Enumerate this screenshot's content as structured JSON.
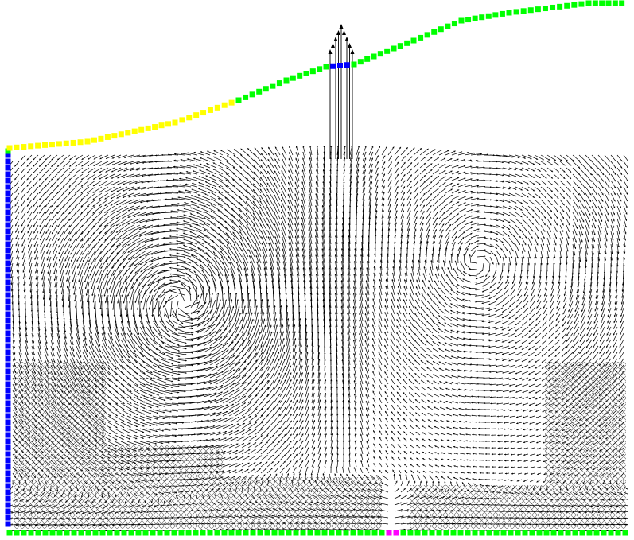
{
  "colors": {
    "background": "#ffffff",
    "vector": "#000000",
    "boundary_wall": "#00ff00",
    "boundary_yellow": "#ffff00",
    "boundary_blue": "#0000ff",
    "boundary_magenta": "#ff00ff",
    "crosshatch": "#555555"
  },
  "legend": {
    "boundary_types": [
      "wall",
      "yellow-boundary",
      "inlet-blue",
      "outlet-magenta"
    ]
  },
  "flow": {
    "vortices": [
      {
        "name": "left-vortex",
        "direction": "clockwise"
      },
      {
        "name": "right-vortex",
        "direction": "counterclockwise"
      }
    ],
    "top_jet": {
      "direction": "up"
    }
  }
}
